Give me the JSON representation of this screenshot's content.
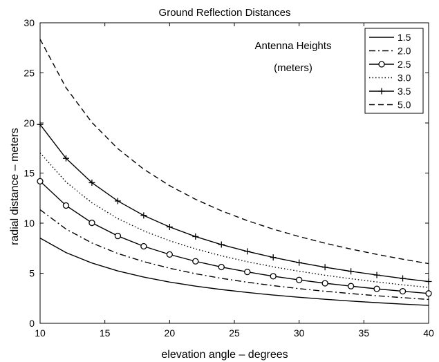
{
  "chart_data": {
    "type": "line",
    "title": "Ground Reflection Distances",
    "xlabel": "elevation angle – degrees",
    "ylabel": "radial distance – meters",
    "xlim": [
      10,
      40
    ],
    "ylim": [
      0,
      30
    ],
    "x_ticks": [
      "10",
      "15",
      "20",
      "25",
      "30",
      "35",
      "40"
    ],
    "y_ticks": [
      "0",
      "5",
      "10",
      "15",
      "20",
      "25",
      "30"
    ],
    "grid": false,
    "legend_position": "top-right",
    "annotation": [
      "Antenna Heights",
      "(meters)"
    ],
    "x": [
      10,
      12,
      14,
      16,
      18,
      20,
      22,
      24,
      26,
      28,
      30,
      32,
      34,
      36,
      38,
      40
    ],
    "series": [
      {
        "name": "1.5",
        "style": "solid",
        "values": [
          8.51,
          7.06,
          6.02,
          5.23,
          4.62,
          4.12,
          3.71,
          3.37,
          3.08,
          2.82,
          2.6,
          2.4,
          2.22,
          2.06,
          1.92,
          1.79
        ]
      },
      {
        "name": "2.0",
        "style": "dashdot",
        "values": [
          11.34,
          9.41,
          8.02,
          6.97,
          6.16,
          5.5,
          4.95,
          4.49,
          4.1,
          3.76,
          3.46,
          3.2,
          2.97,
          2.75,
          2.56,
          2.38
        ]
      },
      {
        "name": "2.5",
        "style": "circle",
        "values": [
          14.18,
          11.76,
          10.03,
          8.72,
          7.69,
          6.87,
          6.19,
          5.62,
          5.13,
          4.7,
          4.33,
          4.0,
          3.71,
          3.44,
          3.2,
          2.98
        ]
      },
      {
        "name": "3.0",
        "style": "dotted",
        "values": [
          17.01,
          14.11,
          12.03,
          10.46,
          9.23,
          8.24,
          7.43,
          6.74,
          6.15,
          5.64,
          5.2,
          4.8,
          4.45,
          4.13,
          3.84,
          3.58
        ]
      },
      {
        "name": "3.5",
        "style": "plus",
        "values": [
          19.85,
          16.47,
          14.04,
          12.21,
          10.77,
          9.62,
          8.66,
          7.86,
          7.18,
          6.58,
          6.06,
          5.6,
          5.19,
          4.82,
          4.48,
          4.17
        ]
      },
      {
        "name": "5.0",
        "style": "dashed",
        "values": [
          28.36,
          23.52,
          20.05,
          17.44,
          15.39,
          13.74,
          12.38,
          11.23,
          10.25,
          9.4,
          8.66,
          8.0,
          7.41,
          6.88,
          6.4,
          5.96
        ]
      }
    ]
  }
}
